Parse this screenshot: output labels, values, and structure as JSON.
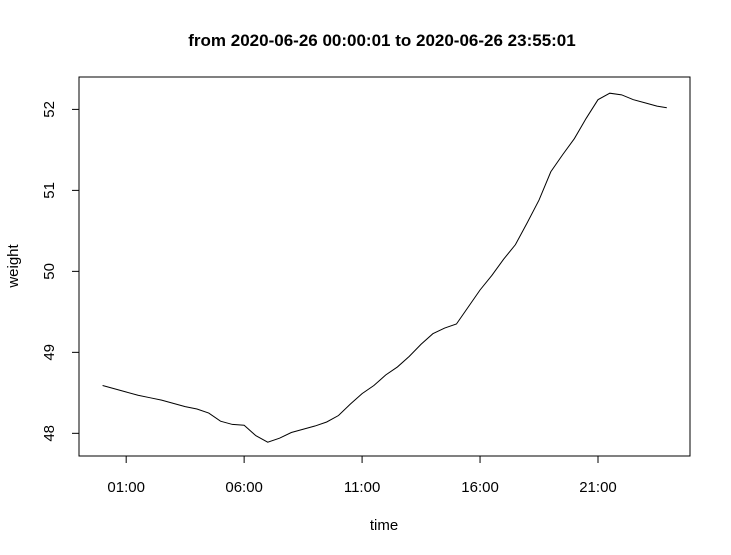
{
  "chart_data": {
    "type": "line",
    "title": "from 2020-06-26 00:00:01 to 2020-06-26 23:55:01",
    "xlabel": "time",
    "ylabel": "weight",
    "x_tick_labels": [
      "01:00",
      "06:00",
      "11:00",
      "16:00",
      "21:00"
    ],
    "x_tick_hours": [
      1,
      6,
      11,
      16,
      21
    ],
    "y_ticks": [
      48,
      49,
      50,
      51,
      52
    ],
    "xlim_hours": [
      -1.0,
      24.9
    ],
    "ylim": [
      47.72,
      52.4
    ],
    "grid": false,
    "legend": "none",
    "line_color": "#000000",
    "series": [
      {
        "x": [
          "00:00",
          "00:30",
          "01:00",
          "01:30",
          "02:00",
          "02:30",
          "03:00",
          "03:30",
          "04:00",
          "04:30",
          "05:00",
          "05:30",
          "06:00",
          "06:30",
          "07:00",
          "07:30",
          "08:00",
          "08:30",
          "09:00",
          "09:30",
          "10:00",
          "10:30",
          "11:00",
          "11:30",
          "12:00",
          "12:30",
          "13:00",
          "13:30",
          "14:00",
          "14:30",
          "15:00",
          "15:30",
          "16:00",
          "16:30",
          "17:00",
          "17:30",
          "18:00",
          "18:30",
          "19:00",
          "19:30",
          "20:00",
          "20:30",
          "21:00",
          "21:30",
          "22:00",
          "22:30",
          "23:00",
          "23:30",
          "23:55"
        ],
        "values": [
          48.59,
          48.55,
          48.51,
          48.47,
          48.44,
          48.41,
          48.37,
          48.33,
          48.3,
          48.25,
          48.15,
          48.11,
          48.1,
          47.97,
          47.89,
          47.94,
          48.01,
          48.05,
          48.09,
          48.14,
          48.22,
          48.36,
          48.49,
          48.59,
          48.72,
          48.82,
          48.95,
          49.1,
          49.23,
          49.3,
          49.35,
          49.56,
          49.77,
          49.95,
          50.15,
          50.33,
          50.6,
          50.88,
          51.23,
          51.44,
          51.64,
          51.89,
          52.12,
          52.2,
          52.18,
          52.12,
          52.08,
          52.04,
          52.02
        ]
      }
    ]
  }
}
